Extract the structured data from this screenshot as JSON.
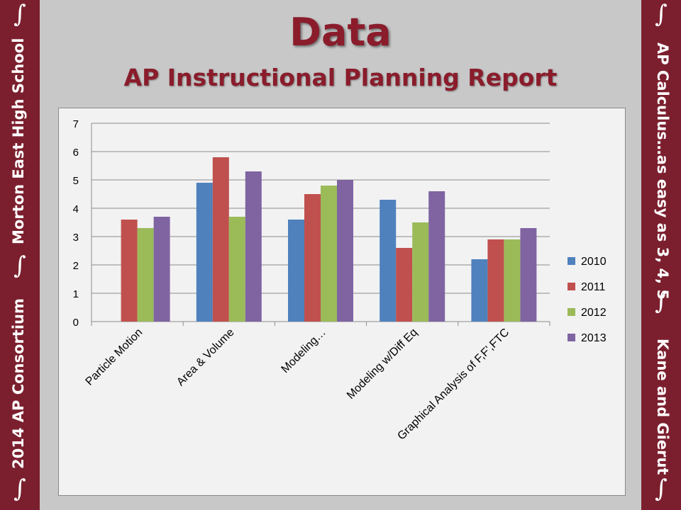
{
  "slide": {
    "title": "Data",
    "subtitle": "AP Instructional Planning Report"
  },
  "sidebar_left": {
    "top_text": "Morton East High School",
    "bottom_text": "2014 AP Consortium",
    "symbol": "∫"
  },
  "sidebar_right": {
    "top_text": "AP Calculus…as easy as 3, 4, 5",
    "bottom_text": "Kane and Gierut",
    "symbol": "∫"
  },
  "colors": {
    "sidebar": "#7b1f2e",
    "title": "#8a1c2b",
    "background": "#c8c8c8"
  },
  "chart_data": {
    "type": "bar",
    "categories": [
      "Particle Motion",
      "Area & Volume",
      "Modeling…",
      "Modeling w/Diff Eq",
      "Graphical Analysis of F,F',FTC"
    ],
    "series": [
      {
        "name": "2010",
        "color": "#4f81bd",
        "values": [
          null,
          4.9,
          3.6,
          4.3,
          2.2
        ]
      },
      {
        "name": "2011",
        "color": "#c0504d",
        "values": [
          3.6,
          5.8,
          4.5,
          2.6,
          2.9
        ]
      },
      {
        "name": "2012",
        "color": "#9bbb59",
        "values": [
          3.3,
          3.7,
          4.8,
          3.5,
          2.9
        ]
      },
      {
        "name": "2013",
        "color": "#8064a2",
        "values": [
          3.7,
          5.3,
          5.0,
          4.6,
          3.3
        ]
      }
    ],
    "ylim": [
      0,
      7
    ],
    "yticks": [
      0,
      1,
      2,
      3,
      4,
      5,
      6,
      7
    ],
    "grid": true,
    "legend": "right"
  }
}
